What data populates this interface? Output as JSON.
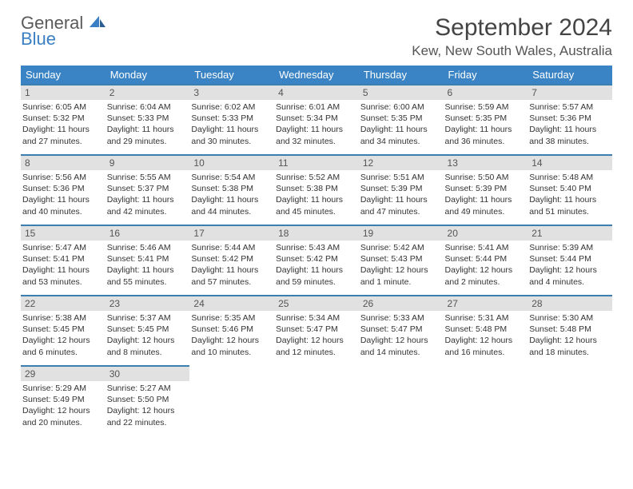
{
  "logo": {
    "word1": "General",
    "word2": "Blue"
  },
  "title": "September 2024",
  "location": "Kew, New South Wales, Australia",
  "colors": {
    "header_bg": "#3a84c6",
    "header_text": "#ffffff",
    "cell_border": "#3a7fb0",
    "daynum_bg": "#e1e1e1",
    "daynum_text": "#555555",
    "body_text": "#333333",
    "logo_gray": "#5a5a5a",
    "logo_blue": "#3a7fc4"
  },
  "day_headers": [
    "Sunday",
    "Monday",
    "Tuesday",
    "Wednesday",
    "Thursday",
    "Friday",
    "Saturday"
  ],
  "weeks": [
    [
      {
        "n": "1",
        "sr": "6:05 AM",
        "ss": "5:32 PM",
        "dl": "11 hours and 27 minutes."
      },
      {
        "n": "2",
        "sr": "6:04 AM",
        "ss": "5:33 PM",
        "dl": "11 hours and 29 minutes."
      },
      {
        "n": "3",
        "sr": "6:02 AM",
        "ss": "5:33 PM",
        "dl": "11 hours and 30 minutes."
      },
      {
        "n": "4",
        "sr": "6:01 AM",
        "ss": "5:34 PM",
        "dl": "11 hours and 32 minutes."
      },
      {
        "n": "5",
        "sr": "6:00 AM",
        "ss": "5:35 PM",
        "dl": "11 hours and 34 minutes."
      },
      {
        "n": "6",
        "sr": "5:59 AM",
        "ss": "5:35 PM",
        "dl": "11 hours and 36 minutes."
      },
      {
        "n": "7",
        "sr": "5:57 AM",
        "ss": "5:36 PM",
        "dl": "11 hours and 38 minutes."
      }
    ],
    [
      {
        "n": "8",
        "sr": "5:56 AM",
        "ss": "5:36 PM",
        "dl": "11 hours and 40 minutes."
      },
      {
        "n": "9",
        "sr": "5:55 AM",
        "ss": "5:37 PM",
        "dl": "11 hours and 42 minutes."
      },
      {
        "n": "10",
        "sr": "5:54 AM",
        "ss": "5:38 PM",
        "dl": "11 hours and 44 minutes."
      },
      {
        "n": "11",
        "sr": "5:52 AM",
        "ss": "5:38 PM",
        "dl": "11 hours and 45 minutes."
      },
      {
        "n": "12",
        "sr": "5:51 AM",
        "ss": "5:39 PM",
        "dl": "11 hours and 47 minutes."
      },
      {
        "n": "13",
        "sr": "5:50 AM",
        "ss": "5:39 PM",
        "dl": "11 hours and 49 minutes."
      },
      {
        "n": "14",
        "sr": "5:48 AM",
        "ss": "5:40 PM",
        "dl": "11 hours and 51 minutes."
      }
    ],
    [
      {
        "n": "15",
        "sr": "5:47 AM",
        "ss": "5:41 PM",
        "dl": "11 hours and 53 minutes."
      },
      {
        "n": "16",
        "sr": "5:46 AM",
        "ss": "5:41 PM",
        "dl": "11 hours and 55 minutes."
      },
      {
        "n": "17",
        "sr": "5:44 AM",
        "ss": "5:42 PM",
        "dl": "11 hours and 57 minutes."
      },
      {
        "n": "18",
        "sr": "5:43 AM",
        "ss": "5:42 PM",
        "dl": "11 hours and 59 minutes."
      },
      {
        "n": "19",
        "sr": "5:42 AM",
        "ss": "5:43 PM",
        "dl": "12 hours and 1 minute."
      },
      {
        "n": "20",
        "sr": "5:41 AM",
        "ss": "5:44 PM",
        "dl": "12 hours and 2 minutes."
      },
      {
        "n": "21",
        "sr": "5:39 AM",
        "ss": "5:44 PM",
        "dl": "12 hours and 4 minutes."
      }
    ],
    [
      {
        "n": "22",
        "sr": "5:38 AM",
        "ss": "5:45 PM",
        "dl": "12 hours and 6 minutes."
      },
      {
        "n": "23",
        "sr": "5:37 AM",
        "ss": "5:45 PM",
        "dl": "12 hours and 8 minutes."
      },
      {
        "n": "24",
        "sr": "5:35 AM",
        "ss": "5:46 PM",
        "dl": "12 hours and 10 minutes."
      },
      {
        "n": "25",
        "sr": "5:34 AM",
        "ss": "5:47 PM",
        "dl": "12 hours and 12 minutes."
      },
      {
        "n": "26",
        "sr": "5:33 AM",
        "ss": "5:47 PM",
        "dl": "12 hours and 14 minutes."
      },
      {
        "n": "27",
        "sr": "5:31 AM",
        "ss": "5:48 PM",
        "dl": "12 hours and 16 minutes."
      },
      {
        "n": "28",
        "sr": "5:30 AM",
        "ss": "5:48 PM",
        "dl": "12 hours and 18 minutes."
      }
    ],
    [
      {
        "n": "29",
        "sr": "5:29 AM",
        "ss": "5:49 PM",
        "dl": "12 hours and 20 minutes."
      },
      {
        "n": "30",
        "sr": "5:27 AM",
        "ss": "5:50 PM",
        "dl": "12 hours and 22 minutes."
      },
      null,
      null,
      null,
      null,
      null
    ]
  ],
  "labels": {
    "sunrise": "Sunrise:",
    "sunset": "Sunset:",
    "daylight": "Daylight:"
  }
}
